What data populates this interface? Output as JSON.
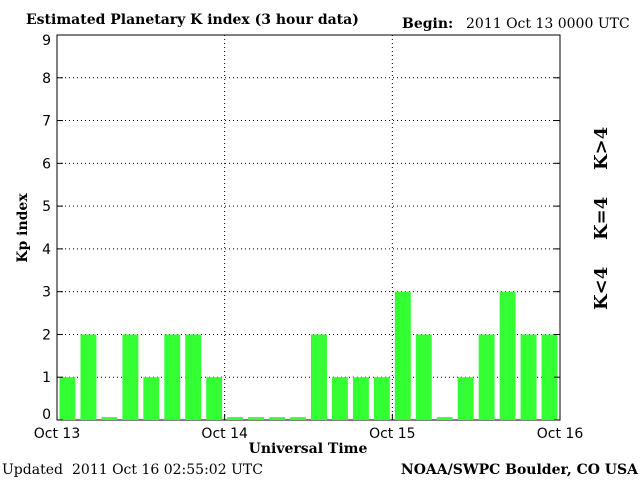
{
  "header": {
    "title": "Estimated Planetary K index (3 hour data)",
    "begin_label": "Begin:",
    "begin_value": "2011 Oct 13 0000 UTC"
  },
  "footer": {
    "updated_label": "Updated",
    "updated_value": "2011 Oct 16 02:55:02 UTC",
    "source": "NOAA/SWPC Boulder, CO USA"
  },
  "legend": {
    "low": "K<4",
    "mid": "K=4",
    "high": "K>4"
  },
  "colors": {
    "low": "#33ff33",
    "mid": "#ffcc00",
    "high": "#ff3300"
  },
  "chart_data": {
    "type": "bar",
    "ylabel": "Kp index",
    "xlabel": "Universal Time",
    "ylim": [
      0,
      9
    ],
    "yticks": [
      "0",
      "1",
      "2",
      "3",
      "4",
      "5",
      "6",
      "7",
      "8",
      "9"
    ],
    "xticks": [
      "Oct 13",
      "Oct 14",
      "Oct 15",
      "Oct 16"
    ],
    "grid": true,
    "values": [
      1,
      2,
      0.067,
      2,
      1,
      2,
      2,
      1,
      0.067,
      0.067,
      0.067,
      0.067,
      2,
      1,
      1,
      1,
      3,
      2,
      0.067,
      1,
      2,
      3,
      2,
      2
    ]
  }
}
